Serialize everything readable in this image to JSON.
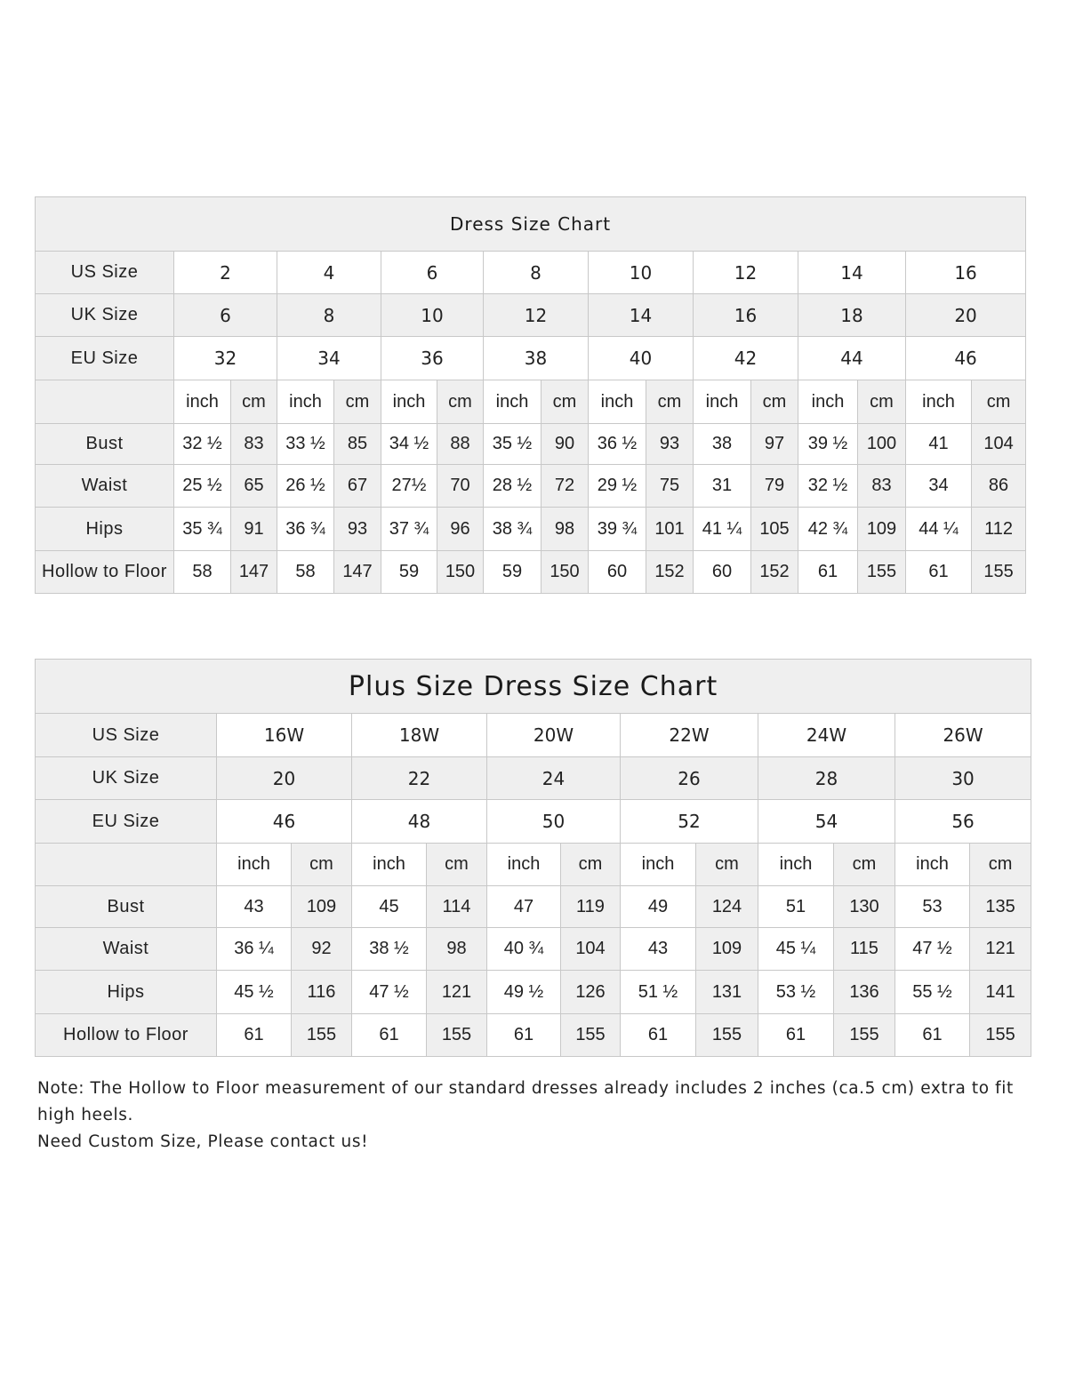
{
  "charts": [
    {
      "title": "Dress Size Chart",
      "us_label": "US Size",
      "uk_label": "UK Size",
      "eu_label": "EU Size",
      "us": [
        "2",
        "4",
        "6",
        "8",
        "10",
        "12",
        "14",
        "16"
      ],
      "uk": [
        "6",
        "8",
        "10",
        "12",
        "14",
        "16",
        "18",
        "20"
      ],
      "eu": [
        "32",
        "34",
        "36",
        "38",
        "40",
        "42",
        "44",
        "46"
      ],
      "unit_inch": "inch",
      "unit_cm": "cm",
      "rows": [
        {
          "label": "Bust",
          "values": [
            [
              "32 ½",
              "83"
            ],
            [
              "33 ½",
              "85"
            ],
            [
              "34 ½",
              "88"
            ],
            [
              "35 ½",
              "90"
            ],
            [
              "36 ½",
              "93"
            ],
            [
              "38",
              "97"
            ],
            [
              "39 ½",
              "100"
            ],
            [
              "41",
              "104"
            ]
          ]
        },
        {
          "label": "Waist",
          "values": [
            [
              "25 ½",
              "65"
            ],
            [
              "26 ½",
              "67"
            ],
            [
              "27½",
              "70"
            ],
            [
              "28 ½",
              "72"
            ],
            [
              "29 ½",
              "75"
            ],
            [
              "31",
              "79"
            ],
            [
              "32 ½",
              "83"
            ],
            [
              "34",
              "86"
            ]
          ]
        },
        {
          "label": "Hips",
          "values": [
            [
              "35 ¾",
              "91"
            ],
            [
              "36 ¾",
              "93"
            ],
            [
              "37 ¾",
              "96"
            ],
            [
              "38 ¾",
              "98"
            ],
            [
              "39 ¾",
              "101"
            ],
            [
              "41 ¼",
              "105"
            ],
            [
              "42 ¾",
              "109"
            ],
            [
              "44 ¼",
              "112"
            ]
          ]
        },
        {
          "label": "Hollow to Floor",
          "values": [
            [
              "58",
              "147"
            ],
            [
              "58",
              "147"
            ],
            [
              "59",
              "150"
            ],
            [
              "59",
              "150"
            ],
            [
              "60",
              "152"
            ],
            [
              "60",
              "152"
            ],
            [
              "61",
              "155"
            ],
            [
              "61",
              "155"
            ]
          ]
        }
      ]
    },
    {
      "title": "Plus Size Dress Size Chart",
      "us_label": "US Size",
      "uk_label": "UK Size",
      "eu_label": "EU Size",
      "us": [
        "16W",
        "18W",
        "20W",
        "22W",
        "24W",
        "26W"
      ],
      "uk": [
        "20",
        "22",
        "24",
        "26",
        "28",
        "30"
      ],
      "eu": [
        "46",
        "48",
        "50",
        "52",
        "54",
        "56"
      ],
      "unit_inch": "inch",
      "unit_cm": "cm",
      "rows": [
        {
          "label": "Bust",
          "values": [
            [
              "43",
              "109"
            ],
            [
              "45",
              "114"
            ],
            [
              "47",
              "119"
            ],
            [
              "49",
              "124"
            ],
            [
              "51",
              "130"
            ],
            [
              "53",
              "135"
            ]
          ]
        },
        {
          "label": "Waist",
          "values": [
            [
              "36 ¼",
              "92"
            ],
            [
              "38 ½",
              "98"
            ],
            [
              "40 ¾",
              "104"
            ],
            [
              "43",
              "109"
            ],
            [
              "45 ¼",
              "115"
            ],
            [
              "47 ½",
              "121"
            ]
          ]
        },
        {
          "label": "Hips",
          "values": [
            [
              "45 ½",
              "116"
            ],
            [
              "47 ½",
              "121"
            ],
            [
              "49 ½",
              "126"
            ],
            [
              "51 ½",
              "131"
            ],
            [
              "53 ½",
              "136"
            ],
            [
              "55 ½",
              "141"
            ]
          ]
        },
        {
          "label": "Hollow to Floor",
          "values": [
            [
              "61",
              "155"
            ],
            [
              "61",
              "155"
            ],
            [
              "61",
              "155"
            ],
            [
              "61",
              "155"
            ],
            [
              "61",
              "155"
            ],
            [
              "61",
              "155"
            ]
          ]
        }
      ]
    }
  ],
  "note": {
    "line1": "Note: The Hollow to Floor measurement of our standard dresses already includes 2 inches (ca.5 cm) extra to fit high heels.",
    "line2": "Need Custom Size, Please contact us!"
  },
  "colors": {
    "header_gray": "#efefef",
    "border": "#c8c8c8",
    "text": "#222222"
  }
}
